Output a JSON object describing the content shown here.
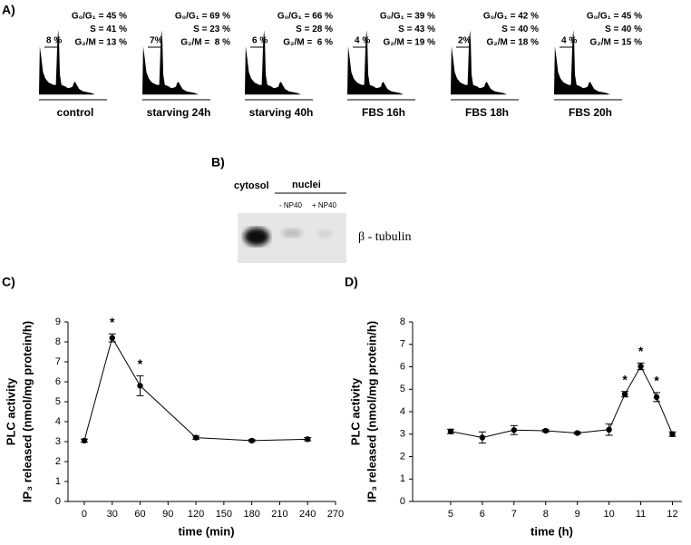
{
  "panel_a": {
    "label": "A)",
    "histograms": [
      {
        "caption": "control",
        "g0g1": "G₀/G₁ = 45 %",
        "s": "S = 41 %",
        "g2m": "G₂/M = 13 %",
        "sub_g1": "8 %"
      },
      {
        "caption": "starving 24h",
        "g0g1": "G₀/G₁ = 69 %",
        "s": "S = 23 %",
        "g2m": "G₂/M =  8 %",
        "sub_g1": "7%"
      },
      {
        "caption": "starving 40h",
        "g0g1": "G₀/G₁ = 66 %",
        "s": "S = 28 %",
        "g2m": "G₂/M =  6 %",
        "sub_g1": "6 %"
      },
      {
        "caption": "FBS 16h",
        "g0g1": "G₀/G₁ = 39 %",
        "s": "S = 43 %",
        "g2m": "G₂/M = 19 %",
        "sub_g1": "4 %"
      },
      {
        "caption": "FBS 18h",
        "g0g1": "G₀/G₁ = 42 %",
        "s": "S = 40 %",
        "g2m": "G₂/M = 18 %",
        "sub_g1": "2%"
      },
      {
        "caption": "FBS 20h",
        "g0g1": "G₀/G₁ = 45 %",
        "s": "S = 40 %",
        "g2m": "G₂/M = 15 %",
        "sub_g1": "4 %"
      }
    ]
  },
  "panel_b": {
    "label": "B)",
    "cytosol": "cytosol",
    "nuclei": "nuclei",
    "minus": "- NP40",
    "plus": "+ NP40",
    "protein": "β - tubulin"
  },
  "chart_data": [
    {
      "type": "line",
      "panel_label": "C)",
      "ylabel": [
        "PLC activity",
        "IP₃ released (nmol/mg protein/h)"
      ],
      "xlabel": "time (min)",
      "x": [
        0,
        30,
        60,
        120,
        180,
        240
      ],
      "series": [
        {
          "color": "#000000",
          "values": [
            3.05,
            8.2,
            5.8,
            3.2,
            3.05,
            3.12
          ],
          "errors": [
            0.08,
            0.2,
            0.5,
            0.08,
            0.05,
            0.08
          ],
          "point_labels": [
            null,
            "*",
            "*",
            null,
            null,
            null
          ]
        }
      ],
      "xlim": [
        -17.5,
        270
      ],
      "xticks": [
        0,
        30,
        60,
        90,
        120,
        150,
        180,
        210,
        240,
        270
      ],
      "ylim": [
        0,
        9
      ],
      "yticks": [
        0,
        1,
        2,
        3,
        4,
        5,
        6,
        7,
        8,
        9
      ]
    },
    {
      "type": "line",
      "panel_label": "D)",
      "ylabel": [
        "PLC activity",
        "IP₃ released (nmol/mg protein/h)"
      ],
      "xlabel": "time (h)",
      "x": [
        5,
        6,
        7,
        8,
        9,
        10,
        10.5,
        11,
        11.5,
        12
      ],
      "series": [
        {
          "color": "#000000",
          "values": [
            3.12,
            2.85,
            3.18,
            3.15,
            3.05,
            3.2,
            4.78,
            6.02,
            4.65,
            3.0
          ],
          "errors": [
            0.1,
            0.25,
            0.2,
            0.05,
            0.05,
            0.25,
            0.12,
            0.15,
            0.2,
            0.1
          ],
          "point_labels": [
            null,
            null,
            null,
            null,
            null,
            null,
            "*",
            "*",
            "*",
            null
          ]
        }
      ],
      "xlim": [
        3.8,
        12.3
      ],
      "xticks": [
        5,
        6,
        7,
        8,
        9,
        10,
        11,
        12
      ],
      "ylim": [
        0,
        8
      ],
      "yticks": [
        0,
        1,
        2,
        3,
        4,
        5,
        6,
        7,
        8
      ]
    }
  ]
}
